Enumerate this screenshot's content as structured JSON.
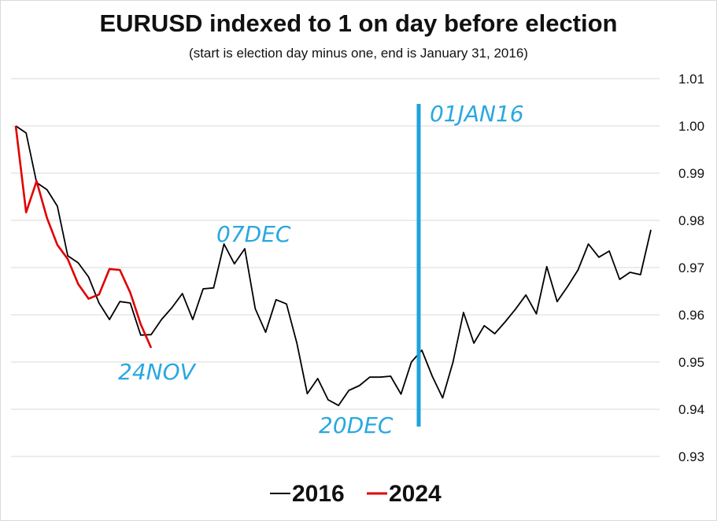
{
  "chart_data": {
    "type": "line",
    "title": "EURUSD indexed to 1 on day before election",
    "subtitle": "(start is election day minus one, end is January 31, 2016)",
    "xlabel": "",
    "ylabel": "",
    "ylim": [
      0.93,
      1.01
    ],
    "yticks": [
      "1.01",
      "1.00",
      "0.99",
      "0.98",
      "0.97",
      "0.96",
      "0.95",
      "0.94",
      "0.93"
    ],
    "grid": "horizontal",
    "legend_position": "bottom",
    "series": [
      {
        "name": "2016",
        "color": "#000000",
        "values": [
          1.0,
          0.9985,
          0.988,
          0.9865,
          0.983,
          0.9725,
          0.971,
          0.968,
          0.9625,
          0.959,
          0.9628,
          0.9625,
          0.9557,
          0.9558,
          0.959,
          0.9615,
          0.9645,
          0.959,
          0.9655,
          0.9657,
          0.975,
          0.9708,
          0.974,
          0.9613,
          0.9563,
          0.9632,
          0.9623,
          0.954,
          0.9433,
          0.9465,
          0.942,
          0.9408,
          0.944,
          0.945,
          0.9468,
          0.9468,
          0.947,
          0.9432,
          0.95,
          0.9525,
          0.947,
          0.9424,
          0.95,
          0.9605,
          0.954,
          0.9577,
          0.956,
          0.9585,
          0.9612,
          0.9642,
          0.9602,
          0.9702,
          0.9628,
          0.966,
          0.9695,
          0.975,
          0.9722,
          0.9735,
          0.9675,
          0.969,
          0.9685,
          0.978
        ]
      },
      {
        "name": "2024",
        "color": "#e00000",
        "values": [
          1.0,
          0.9817,
          0.9883,
          0.9805,
          0.9748,
          0.9718,
          0.9665,
          0.9634,
          0.9643,
          0.9697,
          0.9695,
          0.9647,
          0.958,
          0.953
        ]
      }
    ],
    "annotations": [
      {
        "text": "07DEC",
        "at_index": 20
      },
      {
        "text": "24NOV",
        "at_index": 13
      },
      {
        "text": "20DEC",
        "at_index": 31
      },
      {
        "text": "01JAN16",
        "vertical_line_at_index": 38.7,
        "color": "#1fa2dc"
      }
    ]
  }
}
